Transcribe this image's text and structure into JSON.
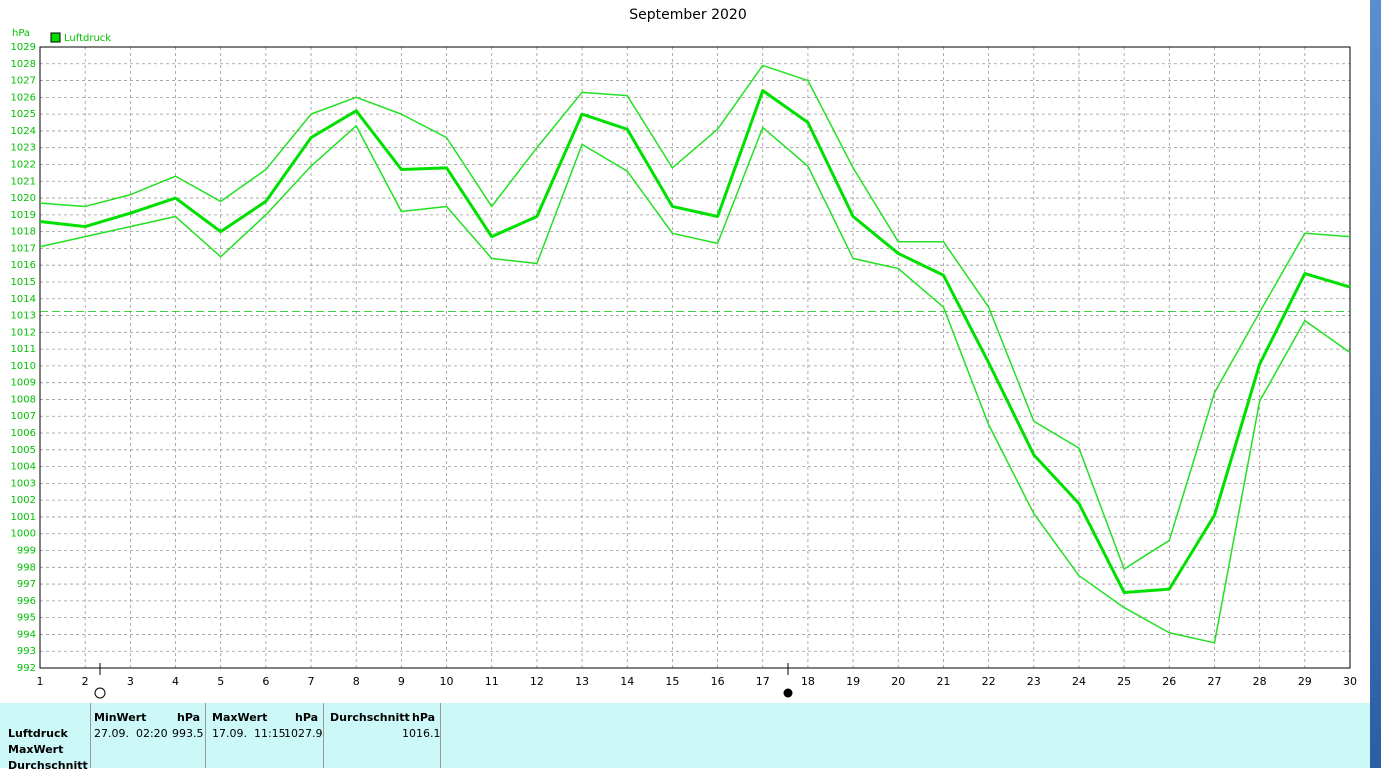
{
  "chart_data": {
    "type": "line",
    "title": "September 2020",
    "y_label": "hPa",
    "legend": "Luftdruck",
    "x": [
      1,
      2,
      3,
      4,
      5,
      6,
      7,
      8,
      9,
      10,
      11,
      12,
      13,
      14,
      15,
      16,
      17,
      18,
      19,
      20,
      21,
      22,
      23,
      24,
      25,
      26,
      27,
      28,
      29,
      30
    ],
    "xlim": [
      1,
      30
    ],
    "xticks": [
      1,
      2,
      3,
      4,
      5,
      6,
      7,
      8,
      9,
      10,
      11,
      12,
      13,
      14,
      15,
      16,
      17,
      18,
      19,
      20,
      21,
      22,
      23,
      24,
      25,
      26,
      27,
      28,
      29,
      30
    ],
    "ylim": [
      992,
      1029
    ],
    "yticks": [
      992,
      993,
      994,
      995,
      996,
      997,
      998,
      999,
      1000,
      1001,
      1002,
      1003,
      1004,
      1005,
      1006,
      1007,
      1008,
      1009,
      1010,
      1011,
      1012,
      1013,
      1014,
      1015,
      1016,
      1017,
      1018,
      1019,
      1020,
      1021,
      1022,
      1023,
      1024,
      1025,
      1026,
      1027,
      1028,
      1029
    ],
    "grid": true,
    "reference_line": 1013.25,
    "series": [
      {
        "name": "Luftdruck",
        "color": "#00e000",
        "width": 3,
        "values": [
          1018.6,
          1018.3,
          1019.1,
          1020.0,
          1018.0,
          1019.8,
          1023.6,
          1025.2,
          1021.7,
          1021.8,
          1017.7,
          1018.9,
          1025.0,
          1024.1,
          1019.5,
          1018.9,
          1026.4,
          1024.5,
          1018.9,
          1016.7,
          1015.4,
          1010.2,
          1004.7,
          1001.8,
          996.5,
          996.7,
          1001.1,
          1010.1,
          1015.5,
          1014.7
        ]
      },
      {
        "color": "#22e022",
        "width": 1.5,
        "values": [
          1019.7,
          1019.5,
          1020.2,
          1021.3,
          1019.8,
          1021.7,
          1025.0,
          1026.0,
          1025.0,
          1023.6,
          1019.5,
          1023.0,
          1026.3,
          1026.1,
          1021.8,
          1024.1,
          1027.9,
          1027.0,
          1021.8,
          1017.4,
          1017.4,
          1013.5,
          1006.7,
          1005.1,
          997.9,
          999.6,
          1008.4,
          1013.2,
          1017.9,
          1017.7
        ]
      },
      {
        "color": "#22e022",
        "width": 1.5,
        "values": [
          1017.1,
          1017.7,
          1018.3,
          1018.9,
          1016.5,
          1019.0,
          1021.9,
          1024.3,
          1019.2,
          1019.5,
          1016.4,
          1016.1,
          1023.2,
          1021.6,
          1017.9,
          1017.3,
          1024.2,
          1021.9,
          1016.4,
          1015.8,
          1013.5,
          1006.5,
          1001.2,
          997.5,
          995.6,
          994.1,
          993.5,
          1007.9,
          1012.7,
          1010.8
        ]
      }
    ]
  },
  "table": {
    "header": [
      [
        "MinWert",
        "hPa"
      ],
      [
        "MaxWert",
        "hPa"
      ],
      [
        "Durchschnitt",
        "hPa"
      ]
    ],
    "row_labels": [
      "Luftdruck",
      "MaxWert",
      "Durchschnitt"
    ],
    "rows": [
      [
        "27.09.  02:20",
        "993.5",
        "17.09.  11:15",
        "1027.9",
        "1016.1"
      ]
    ]
  }
}
